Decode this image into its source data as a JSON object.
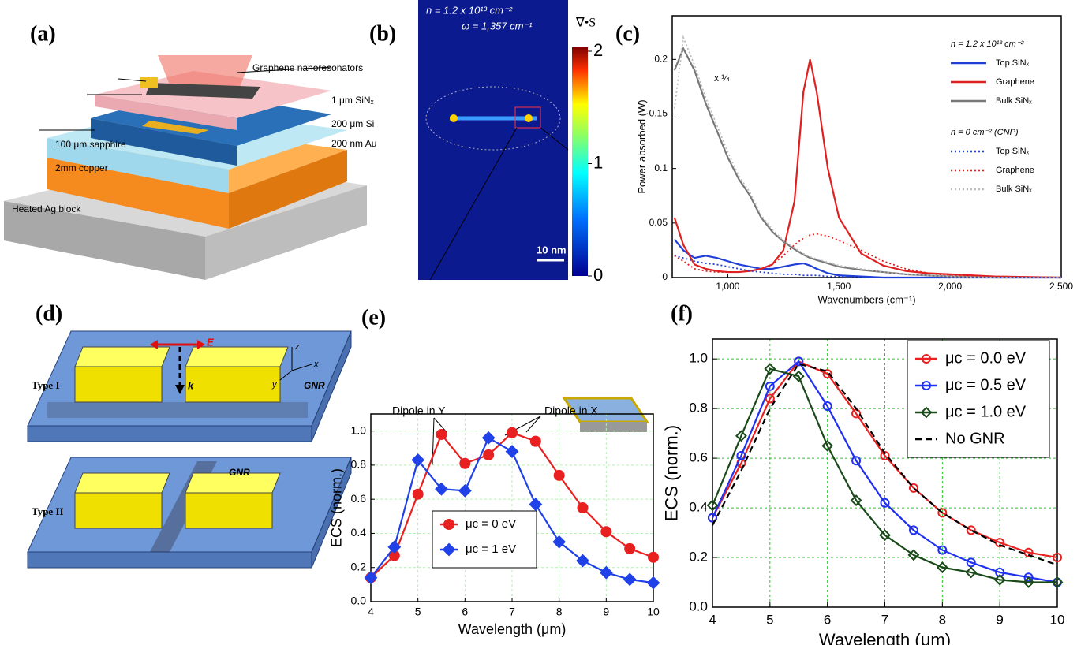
{
  "panel_labels": [
    "(a)",
    "(b)",
    "(c)",
    "(d)",
    "(e)",
    "(f)"
  ],
  "panel_a": {
    "labels": [
      "Graphene nanoresonators",
      "1 μm SiNₓ",
      "200 μm Si",
      "200 nm Au",
      "100 μm sapphire",
      "2mm copper",
      "Heated Ag block"
    ]
  },
  "panel_b": {
    "density": "n = 1.2 x 10¹³ cm⁻²",
    "frequency": "ω = 1,357 cm⁻¹",
    "colorbar_title": "∇•S",
    "colorbar_lim": [
      0,
      2
    ],
    "colorbar_ticks": [
      0,
      1,
      2
    ],
    "scale_bar": "10 nm"
  },
  "panel_d": {
    "type1": "Type I",
    "type2": "Type II",
    "gnr1": "GNR",
    "gnr2": "GNR",
    "axis_z": "z",
    "axis_x": "x",
    "axis_y": "y",
    "field": "E",
    "wavevector": "k"
  },
  "chart_data": [
    {
      "type": "line",
      "ylabel": "Power absorbed (W)",
      "xlabel": "Wavenumbers (cm⁻¹)",
      "legend_titles": [
        "n = 1.2 x 10¹³ cm⁻²",
        "n = 0 cm⁻² (CNP)"
      ],
      "annotations": [
        "x ¼"
      ],
      "x": [
        760,
        800,
        850,
        900,
        950,
        1000,
        1050,
        1100,
        1150,
        1200,
        1250,
        1300,
        1340,
        1370,
        1400,
        1450,
        1500,
        1600,
        1700,
        1800,
        1900,
        2000,
        2200,
        2500
      ],
      "xlim": [
        750,
        2500
      ],
      "ylim": [
        0,
        0.24
      ],
      "xticks": [
        {
          "value": 1000,
          "label": "1,000"
        },
        {
          "value": 1500,
          "label": "1,500"
        },
        {
          "value": 2000,
          "label": "2,000"
        },
        {
          "value": 2500,
          "label": "2,500"
        }
      ],
      "yticks": [
        0,
        0.05,
        0.1,
        0.15,
        0.2
      ],
      "grid": false,
      "series": [
        {
          "name": "Top SiNₓ",
          "color": "#1f3fd6",
          "dash": "solid",
          "values": [
            0.035,
            0.025,
            0.018,
            0.02,
            0.018,
            0.015,
            0.012,
            0.01,
            0.008,
            0.008,
            0.01,
            0.012,
            0.013,
            0.011,
            0.008,
            0.004,
            0.002,
            0.001,
            0,
            0,
            0,
            0,
            0,
            0
          ]
        },
        {
          "name": "Graphene",
          "color": "#e02020",
          "dash": "solid",
          "values": [
            0.055,
            0.03,
            0.012,
            0.008,
            0.006,
            0.005,
            0.005,
            0.006,
            0.008,
            0.012,
            0.025,
            0.07,
            0.17,
            0.2,
            0.17,
            0.1,
            0.055,
            0.022,
            0.011,
            0.006,
            0.004,
            0.003,
            0.001,
            0
          ]
        },
        {
          "name": "Bulk SiNₓ",
          "color": "#777777",
          "dash": "solid",
          "values": [
            0.19,
            0.21,
            0.19,
            0.16,
            0.135,
            0.11,
            0.09,
            0.075,
            0.055,
            0.042,
            0.033,
            0.026,
            0.021,
            0.018,
            0.016,
            0.013,
            0.01,
            0.007,
            0.005,
            0.003,
            0.002,
            0.001,
            0,
            0
          ]
        },
        {
          "name": "Top SiNₓ",
          "color": "#1f3fd6",
          "dash": "dotted",
          "values": [
            0.02,
            0.018,
            0.015,
            0.013,
            0.012,
            0.01,
            0.008,
            0.006,
            0.005,
            0.004,
            0.003,
            0.003,
            0.002,
            0.002,
            0.002,
            0.001,
            0.001,
            0,
            0,
            0,
            0,
            0,
            0,
            0
          ]
        },
        {
          "name": "Graphene",
          "color": "#e02020",
          "dash": "dotted",
          "values": [
            0.02,
            0.015,
            0.008,
            0.006,
            0.005,
            0.005,
            0.005,
            0.006,
            0.008,
            0.012,
            0.02,
            0.03,
            0.036,
            0.039,
            0.04,
            0.038,
            0.034,
            0.025,
            0.015,
            0.008,
            0.004,
            0.002,
            0.001,
            0
          ]
        },
        {
          "name": "Bulk SiNₓ",
          "color": "#bbbbbb",
          "dash": "dotted",
          "values": [
            0.155,
            0.22,
            0.195,
            0.165,
            0.14,
            0.115,
            0.093,
            0.078,
            0.057,
            0.044,
            0.034,
            0.027,
            0.022,
            0.019,
            0.017,
            0.014,
            0.011,
            0.008,
            0.005,
            0.003,
            0.002,
            0.001,
            0,
            0
          ]
        }
      ]
    },
    {
      "type": "line",
      "ylabel": "ECS (norm.)",
      "xlabel": "Wavelength (μm)",
      "annotations": [
        "Dipole in Y",
        "Dipole in X"
      ],
      "x": [
        4,
        4.5,
        5,
        5.5,
        6,
        6.5,
        7,
        7.5,
        8,
        8.5,
        9,
        9.5,
        10
      ],
      "xlim": [
        4,
        10
      ],
      "ylim": [
        0,
        1.1
      ],
      "xticks": [
        4,
        5,
        6,
        7,
        8,
        9,
        10
      ],
      "yticks": [
        {
          "value": 0,
          "label": "0.0"
        },
        0.2,
        0.4,
        0.6,
        0.8,
        {
          "value": 1,
          "label": "1.0"
        }
      ],
      "grid": true,
      "grid_color": "#b8eeb8",
      "series": [
        {
          "name": "μc = 0 eV",
          "color": "#e82020",
          "marker": "circle",
          "dash": "solid",
          "values": [
            0.14,
            0.27,
            0.63,
            0.98,
            0.81,
            0.86,
            0.99,
            0.94,
            0.74,
            0.55,
            0.41,
            0.31,
            0.26
          ]
        },
        {
          "name": "μc = 1 eV",
          "color": "#2040e8",
          "marker": "diamond",
          "dash": "solid",
          "values": [
            0.14,
            0.32,
            0.83,
            0.66,
            0.65,
            0.96,
            0.88,
            0.57,
            0.35,
            0.24,
            0.17,
            0.13,
            0.11
          ]
        }
      ]
    },
    {
      "type": "line",
      "ylabel": "ECS (norm.)",
      "xlabel": "Wavelength (μm)",
      "x": [
        4,
        4.5,
        5,
        5.5,
        6,
        6.5,
        7,
        7.5,
        8,
        8.5,
        9,
        9.5,
        10
      ],
      "xlim": [
        4,
        10
      ],
      "ylim": [
        0,
        1.08
      ],
      "xticks": [
        4,
        5,
        6,
        7,
        8,
        9,
        10
      ],
      "yticks": [
        {
          "value": 0,
          "label": "0.0"
        },
        0.2,
        0.4,
        0.6,
        0.8,
        {
          "value": 1,
          "label": "1.0"
        }
      ],
      "grid": true,
      "grid_color": "#22cc22",
      "series": [
        {
          "name": "μc = 0.0 eV",
          "color": "#e82020",
          "marker": "open-circle",
          "dash": "solid",
          "values": [
            0.36,
            0.58,
            0.84,
            0.99,
            0.94,
            0.78,
            0.61,
            0.48,
            0.38,
            0.31,
            0.26,
            0.22,
            0.2
          ]
        },
        {
          "name": "μc = 0.5 eV",
          "color": "#2030f0",
          "marker": "open-circle",
          "dash": "solid",
          "values": [
            0.36,
            0.61,
            0.89,
            0.99,
            0.81,
            0.59,
            0.42,
            0.31,
            0.23,
            0.18,
            0.14,
            0.12,
            0.1
          ]
        },
        {
          "name": "μc = 1.0 eV",
          "color": "#1a4a1a",
          "marker": "open-diamond",
          "dash": "solid",
          "values": [
            0.41,
            0.69,
            0.96,
            0.93,
            0.65,
            0.43,
            0.29,
            0.21,
            0.16,
            0.14,
            0.11,
            0.1,
            0.1
          ]
        },
        {
          "name": "No GNR",
          "color": "#000000",
          "dash": "dashed",
          "values": [
            0.33,
            0.55,
            0.8,
            0.98,
            0.95,
            0.8,
            0.62,
            0.48,
            0.38,
            0.31,
            0.25,
            0.21,
            0.17
          ]
        }
      ]
    }
  ]
}
